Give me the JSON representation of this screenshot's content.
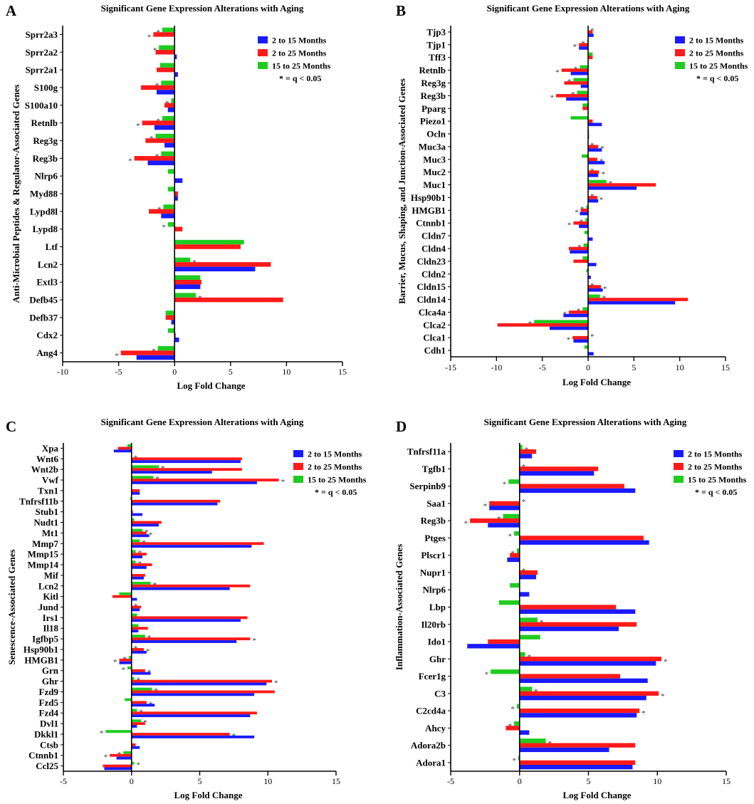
{
  "figure": {
    "panel_labels": [
      "A",
      "B",
      "C",
      "D"
    ]
  },
  "colors": {
    "s2_15": "#1a1aff",
    "s2_25": "#ff1a1a",
    "s15_25": "#1fcc1f",
    "axis": "#000000"
  },
  "legend": {
    "series_names": [
      "2 to 15 Months",
      "2 to 25 Months",
      "15 to 25 Months"
    ],
    "note": "* = q < 0.05"
  },
  "chart_data": [
    {
      "panel": "A",
      "type": "bar",
      "orientation": "horizontal",
      "title": "Significant Gene Expression Alterations with Aging",
      "xlabel": "Log Fold Change",
      "ylabel": "Anti-Microbial Peptides & Regulator-Associated Genes",
      "xlim": [
        -10,
        15
      ],
      "xticks": [
        "-10",
        "-5",
        "0",
        "5",
        "10",
        "15"
      ],
      "xtick_values": [
        -10,
        -5,
        0,
        5,
        10,
        15
      ],
      "legend_position": "top-right",
      "categories": [
        "Sprr2a3",
        "Sprr2a2",
        "Sprr2a1",
        "S100g",
        "S100a10",
        "Retnlb",
        "Reg3g",
        "Reg3b",
        "Nlrp6",
        "Myd88",
        "Lypd8l",
        "Lypd8",
        "Ltf",
        "Lcn2",
        "Extl3",
        "Defb45",
        "Defb37",
        "Cdx2",
        "Ang4"
      ],
      "series": [
        {
          "name": "15 to 25 Months",
          "values": [
            -1.1,
            -1.4,
            -1.3,
            -1.2,
            -0.3,
            -1.1,
            -1.7,
            -1.2,
            -0.6,
            -0.6,
            -1.0,
            -0.6,
            6.2,
            1.4,
            2.3,
            1.9,
            -0.8,
            -0.6,
            -1.5
          ]
        },
        {
          "name": "2 to 25 Months",
          "values": [
            -1.9,
            -1.7,
            -1.6,
            -3.0,
            -0.9,
            -2.9,
            -2.6,
            -3.6,
            0.0,
            0.3,
            -2.3,
            0.7,
            5.9,
            8.6,
            2.4,
            9.7,
            -0.8,
            0.1,
            -4.8
          ]
        },
        {
          "name": "2 to 15 Months",
          "values": [
            0.0,
            0.2,
            0.3,
            -1.6,
            -0.6,
            -1.8,
            -0.9,
            -2.4,
            0.7,
            0.3,
            -1.2,
            0.0,
            0.0,
            7.2,
            2.3,
            0.0,
            -0.3,
            0.4,
            -3.4
          ]
        }
      ],
      "significance": [
        [
          "*",
          "*",
          ""
        ],
        [
          "*",
          "",
          ""
        ],
        [
          "",
          "",
          ""
        ],
        [
          "*",
          "",
          ""
        ],
        [
          "*",
          "",
          ""
        ],
        [
          "*",
          "*",
          ""
        ],
        [
          "*",
          "",
          ""
        ],
        [
          "*",
          "*",
          ""
        ],
        [
          "",
          "",
          ""
        ],
        [
          "",
          "",
          ""
        ],
        [
          "*",
          "",
          ""
        ],
        [
          "*",
          "",
          ""
        ],
        [
          "",
          "",
          ""
        ],
        [
          "*",
          "",
          ""
        ],
        [
          "",
          "",
          ""
        ],
        [
          "*",
          "",
          ""
        ],
        [
          "",
          "",
          ""
        ],
        [
          "",
          "",
          ""
        ],
        [
          "*",
          "*",
          ""
        ]
      ]
    },
    {
      "panel": "B",
      "type": "bar",
      "orientation": "horizontal",
      "title": "Significant Gene Expression Alterations with Aging",
      "xlabel": "Log Fold Change",
      "ylabel": "Barrier, Mucus, Shaping, and Junction-Associated Genes",
      "xlim": [
        -15,
        15
      ],
      "xticks": [
        "-15",
        "-10",
        "-5",
        "0",
        "5",
        "10",
        "15"
      ],
      "xtick_values": [
        -15,
        -10,
        -5,
        0,
        5,
        10,
        15
      ],
      "legend_position": "top-right",
      "categories": [
        "Tjp3",
        "Tjp1",
        "Tff3",
        "Retnlb",
        "Reg3g",
        "Reg3b",
        "Pparg",
        "Piezo1",
        "Ocln",
        "Muc3a",
        "Muc3",
        "Muc2",
        "Muc1",
        "Hsp90b1",
        "HMGB1",
        "Ctnnb1",
        "Cldn7",
        "Cldn4",
        "Cldn23",
        "Cldn2",
        "Cldn15",
        "Cldn14",
        "Clca4a",
        "Clca2",
        "Clca1",
        "Cdh1"
      ],
      "series": [
        {
          "name": "15 to 25 Months",
          "values": [
            0.0,
            -0.1,
            0.5,
            -0.9,
            -1.6,
            -1.2,
            -0.6,
            -1.9,
            0.1,
            0.0,
            -0.7,
            0.0,
            2.0,
            0.0,
            -0.2,
            -0.3,
            -0.4,
            -0.5,
            -0.6,
            -0.2,
            0.0,
            1.3,
            -0.6,
            -5.9,
            0.0,
            -0.4
          ]
        },
        {
          "name": "2 to 25 Months",
          "values": [
            0.5,
            -1.0,
            0.5,
            -2.9,
            -2.6,
            -3.5,
            -0.6,
            0.5,
            0.1,
            1.1,
            1.0,
            1.2,
            7.4,
            1.0,
            -0.8,
            -1.6,
            0.0,
            -2.1,
            -1.6,
            0.0,
            1.4,
            10.9,
            -2.1,
            -9.9,
            -1.7,
            0.0
          ]
        },
        {
          "name": "2 to 15 Months",
          "values": [
            0.6,
            -1.0,
            0.0,
            -1.9,
            -0.8,
            -2.4,
            0.0,
            1.5,
            0.1,
            1.5,
            1.8,
            1.1,
            5.3,
            1.1,
            -0.9,
            -1.0,
            0.5,
            -2.0,
            0.9,
            0.3,
            1.6,
            9.5,
            -2.7,
            -4.2,
            -1.6,
            0.6
          ]
        }
      ],
      "significance": [
        [
          "*",
          "",
          ""
        ],
        [
          "*",
          "*",
          ""
        ],
        [
          "",
          "",
          ""
        ],
        [
          "*",
          "*",
          ""
        ],
        [
          "*",
          "",
          ""
        ],
        [
          "*",
          "*",
          ""
        ],
        [
          "",
          "",
          ""
        ],
        [
          "",
          "",
          ""
        ],
        [
          "",
          "",
          ""
        ],
        [
          "*",
          "*",
          ""
        ],
        [
          "",
          "*",
          ""
        ],
        [
          "*",
          "*",
          ""
        ],
        [
          "*",
          "",
          ""
        ],
        [
          "*",
          "*",
          ""
        ],
        [
          "*",
          "*",
          ""
        ],
        [
          "*",
          "*",
          ""
        ],
        [
          "",
          "",
          ""
        ],
        [
          "*",
          "",
          ""
        ],
        [
          "",
          "",
          ""
        ],
        [
          "",
          "",
          ""
        ],
        [
          "*",
          "*",
          ""
        ],
        [
          "*",
          "",
          ""
        ],
        [
          "*",
          "*",
          ""
        ],
        [
          "*",
          "",
          ""
        ],
        [
          "*",
          "*",
          ""
        ],
        [
          "",
          "",
          ""
        ]
      ]
    },
    {
      "panel": "C",
      "type": "bar",
      "orientation": "horizontal",
      "title": "Significant Gene Expression Alterations with Aging",
      "xlabel": "Log Fold Change",
      "ylabel": "Senescence-Associated Genes",
      "xlim": [
        -5,
        15
      ],
      "xticks": [
        "-5",
        "0",
        "5",
        "10",
        "15"
      ],
      "xtick_values": [
        -5,
        0,
        5,
        10,
        15
      ],
      "legend_position": "top-right",
      "categories": [
        "Xpa",
        "Wnt6",
        "Wnt2b",
        "Vwf",
        "Txn1",
        "Tnfrsf11b",
        "Stub1",
        "Nudt1",
        "Mt1",
        "Mmp7",
        "Mmp15",
        "Mmp14",
        "Mif",
        "Lcn2",
        "Kitl",
        "Jund",
        "Irs1",
        "Il18",
        "Igfbp5",
        "Hsp90b1",
        "HMGB1",
        "Grn",
        "Ghr",
        "Fzd9",
        "Fzd5",
        "Fzd4",
        "Dvl1",
        "Dkkl1",
        "Ctsb",
        "Ctnnb1",
        "Ccl25"
      ],
      "series": [
        {
          "name": "15 to 25 Months",
          "values": [
            -0.3,
            0.0,
            2.0,
            1.6,
            0.0,
            -0.1,
            0.0,
            0.2,
            0.8,
            0.6,
            0.3,
            0.3,
            0.0,
            1.4,
            -0.9,
            0.0,
            0.4,
            0.5,
            1.0,
            0.0,
            -0.2,
            -0.3,
            0.2,
            1.5,
            -0.5,
            0.4,
            0.7,
            -1.9,
            0.0,
            -0.6,
            0.2
          ]
        },
        {
          "name": "2 to 25 Months",
          "values": [
            -1.0,
            8.1,
            8.1,
            10.8,
            0.6,
            6.5,
            0.1,
            2.2,
            1.1,
            9.7,
            1.1,
            1.5,
            1.0,
            8.7,
            -1.4,
            0.7,
            8.5,
            1.2,
            8.7,
            0.9,
            -0.9,
            1.0,
            10.3,
            10.5,
            1.1,
            9.2,
            1.0,
            7.2,
            0.3,
            -1.6,
            -2.1
          ]
        },
        {
          "name": "2 to 15 Months",
          "values": [
            -1.3,
            8.0,
            5.9,
            9.2,
            0.6,
            6.3,
            0.8,
            2.0,
            1.3,
            8.8,
            0.8,
            1.1,
            0.9,
            7.2,
            0.4,
            0.6,
            8.0,
            0.5,
            7.7,
            1.1,
            -0.9,
            1.4,
            9.9,
            9.0,
            1.7,
            8.7,
            0.4,
            9.0,
            0.6,
            -1.1,
            -2.0
          ]
        }
      ],
      "significance": [
        [
          "",
          "",
          ""
        ],
        [
          "*",
          "",
          ""
        ],
        [
          "*",
          "",
          ""
        ],
        [
          "*",
          "*",
          ""
        ],
        [
          "",
          "",
          ""
        ],
        [
          "",
          "",
          ""
        ],
        [
          "",
          "",
          ""
        ],
        [
          "",
          "",
          ""
        ],
        [
          "*",
          "*",
          ""
        ],
        [
          "*",
          "",
          ""
        ],
        [
          "*",
          "",
          ""
        ],
        [
          "*",
          "",
          ""
        ],
        [
          "",
          "",
          ""
        ],
        [
          "*",
          "",
          ""
        ],
        [
          "",
          "",
          ""
        ],
        [
          "*",
          "",
          ""
        ],
        [
          "",
          "",
          ""
        ],
        [
          "",
          "",
          ""
        ],
        [
          "*",
          "*",
          ""
        ],
        [
          "*",
          "*",
          ""
        ],
        [
          "*",
          "*",
          ""
        ],
        [
          "*",
          "*",
          ""
        ],
        [
          "*",
          "*",
          ""
        ],
        [
          "*",
          "",
          ""
        ],
        [
          "",
          "*",
          ""
        ],
        [
          "*",
          "",
          ""
        ],
        [
          "*",
          "",
          ""
        ],
        [
          "*",
          "*",
          ""
        ],
        [
          "",
          "",
          ""
        ],
        [
          "*",
          "*",
          ""
        ],
        [
          "*",
          "",
          ""
        ]
      ]
    },
    {
      "panel": "D",
      "type": "bar",
      "orientation": "horizontal",
      "title": "Significant Gene Expression Alterations with Aging",
      "xlabel": "Log Fold Change",
      "ylabel": "Inflammation-Associated Genes",
      "xlim": [
        -5,
        15
      ],
      "xticks": [
        "-5",
        "0",
        "5",
        "10",
        "15"
      ],
      "xtick_values": [
        -5,
        0,
        5,
        10,
        15
      ],
      "legend_position": "top-right",
      "categories": [
        "Tnfrsf11a",
        "Tgfb1",
        "Serpinb9",
        "Saa1",
        "Reg3b",
        "Ptges",
        "Plscr1",
        "Nupr1",
        "Nlrp6",
        "Lbp",
        "Il20rb",
        "Ido1",
        "Ghr",
        "Fcer1g",
        "C3",
        "C2cd4a",
        "Ahcy",
        "Adora2b",
        "Adora1"
      ],
      "series": [
        {
          "name": "15 to 25 Months",
          "values": [
            0.2,
            0.0,
            -0.8,
            0.0,
            -1.2,
            -0.4,
            -0.2,
            0.0,
            -0.7,
            -1.5,
            1.3,
            1.5,
            0.4,
            -2.1,
            0.9,
            -0.2,
            -0.4,
            1.9,
            -0.1
          ]
        },
        {
          "name": "2 to 25 Months",
          "values": [
            1.2,
            5.7,
            7.6,
            -2.2,
            -3.6,
            9.0,
            -0.7,
            1.3,
            0.0,
            7.0,
            8.5,
            -2.3,
            10.3,
            7.3,
            10.1,
            8.7,
            -1.0,
            8.4,
            8.4
          ]
        },
        {
          "name": "2 to 15 Months",
          "values": [
            0.9,
            5.4,
            8.4,
            -2.2,
            -2.3,
            9.4,
            -0.9,
            1.2,
            0.7,
            8.4,
            7.2,
            -3.8,
            9.9,
            9.3,
            9.2,
            8.5,
            0.7,
            6.5,
            8.2
          ]
        }
      ],
      "significance": [
        [
          "*",
          "",
          ""
        ],
        [
          "*",
          "",
          ""
        ],
        [
          "*",
          "",
          ""
        ],
        [
          "*",
          "*",
          ""
        ],
        [
          "*",
          "*",
          ""
        ],
        [
          "*",
          "",
          ""
        ],
        [
          "*",
          "",
          ""
        ],
        [
          "*",
          "",
          ""
        ],
        [
          "",
          "",
          ""
        ],
        [
          "",
          "",
          ""
        ],
        [
          "*",
          "",
          ""
        ],
        [
          "",
          "",
          ""
        ],
        [
          "*",
          "*",
          ""
        ],
        [
          "*",
          "",
          ""
        ],
        [
          "*",
          "*",
          ""
        ],
        [
          "*",
          "*",
          ""
        ],
        [
          "*",
          "",
          ""
        ],
        [
          "*",
          "",
          ""
        ],
        [
          "*",
          "",
          ""
        ]
      ]
    }
  ]
}
